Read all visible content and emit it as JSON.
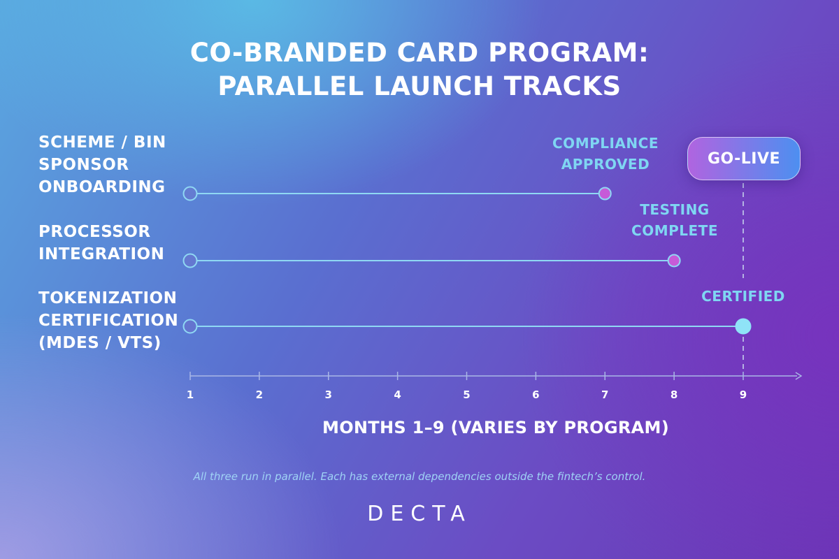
{
  "chart_data": {
    "type": "timeline",
    "title_lines": [
      "CO-BRANDED CARD PROGRAM:",
      "PARALLEL LAUNCH TRACKS"
    ],
    "xlabel": "MONTHS 1–9 (VARIES BY PROGRAM)",
    "x_ticks": [
      1,
      2,
      3,
      4,
      5,
      6,
      7,
      8,
      9
    ],
    "xlim": [
      1,
      9
    ],
    "tracks": [
      {
        "label_lines": [
          "SCHEME / BIN",
          "SPONSOR",
          "ONBOARDING"
        ],
        "start": 1,
        "end": 7,
        "milestone_lines": [
          "COMPLIANCE",
          "APPROVED"
        ]
      },
      {
        "label_lines": [
          "PROCESSOR",
          "INTEGRATION"
        ],
        "start": 1,
        "end": 8,
        "milestone_lines": [
          "TESTING",
          "COMPLETE"
        ]
      },
      {
        "label_lines": [
          "TOKENIZATION",
          "CERTIFICATION",
          "(MDES / VTS)"
        ],
        "start": 1,
        "end": 9,
        "milestone_lines": [
          "CERTIFIED"
        ]
      }
    ],
    "go_live": {
      "label": "GO-LIVE",
      "month": 9
    },
    "colors": {
      "line": "#8fd8f3",
      "end_marker_purple": "#c65bd8",
      "end_marker_cyan": "#8fe3f7",
      "milestone_text": "#7fd6f2"
    }
  },
  "footnote": "All three run in parallel. Each has external dependencies outside the fintech’s control.",
  "brand": "DECTA"
}
